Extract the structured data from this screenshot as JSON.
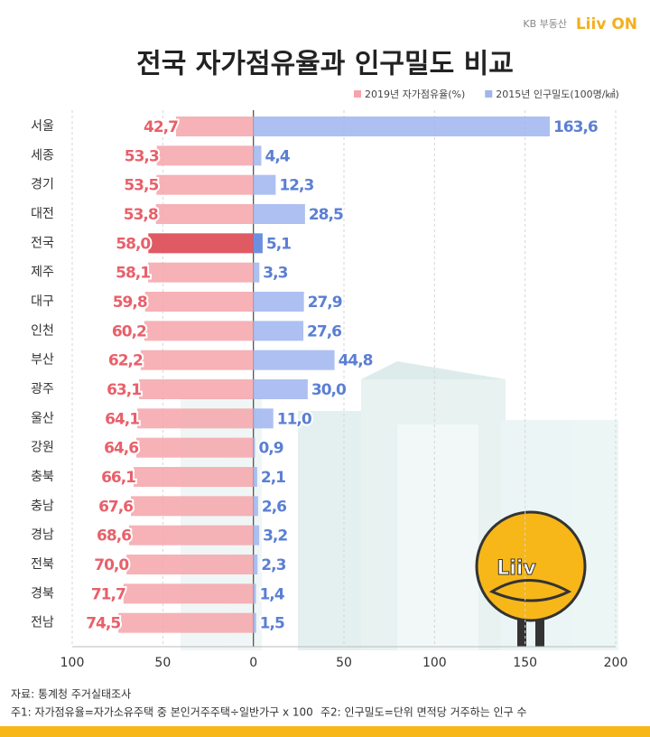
{
  "brand": {
    "name": "KB 부동산",
    "logo": "Liiv ON"
  },
  "chart_data": {
    "type": "diverging-bar",
    "title": "전국 자가점유율과 인구밀도 비교",
    "categories": [
      "서울",
      "세종",
      "경기",
      "대전",
      "전국",
      "제주",
      "대구",
      "인천",
      "부산",
      "광주",
      "울산",
      "강원",
      "충북",
      "충남",
      "경남",
      "전북",
      "경북",
      "전남"
    ],
    "highlight_category_index": 4,
    "series": [
      {
        "name": "2019년 자가점유율(%)",
        "direction": "left",
        "color": "#f5a4aa",
        "highlight_color": "#e05a63",
        "label_color": "#e8606a",
        "values": [
          42.7,
          53.3,
          53.5,
          53.8,
          58.0,
          58.1,
          59.8,
          60.2,
          62.2,
          63.1,
          64.1,
          64.6,
          66.1,
          67.6,
          68.6,
          70.0,
          71.7,
          74.5
        ],
        "value_labels": [
          "42,7",
          "53,3",
          "53,5",
          "53,8",
          "58,0",
          "58,1",
          "59,8",
          "60,2",
          "62,2",
          "63,1",
          "64,1",
          "64,6",
          "66,1",
          "67,6",
          "68,6",
          "70,0",
          "71,7",
          "74,5"
        ]
      },
      {
        "name": "2015년 인구밀도(100명/㎢)",
        "direction": "right",
        "color": "#9fb5ef",
        "highlight_color": "#6d8fdf",
        "label_color": "#5b7fd3",
        "values": [
          163.6,
          4.4,
          12.3,
          28.5,
          5.1,
          3.3,
          27.9,
          27.6,
          44.8,
          30.0,
          11.0,
          0.9,
          2.1,
          2.6,
          3.2,
          2.3,
          1.4,
          1.5
        ],
        "value_labels": [
          "163,6",
          "4,4",
          "12,3",
          "28,5",
          "5,1",
          "3,3",
          "27,9",
          "27,6",
          "44,8",
          "30,0",
          "11,0",
          "0,9",
          "2,1",
          "2,6",
          "3,2",
          "2,3",
          "1,4",
          "1,5"
        ]
      }
    ],
    "xlim": [
      -100,
      200
    ],
    "xticks": [
      {
        "value": -100,
        "label": "100"
      },
      {
        "value": -50,
        "label": "50"
      },
      0,
      50,
      100,
      150,
      200
    ],
    "grid": true,
    "legend": "top-right"
  },
  "notes": {
    "source": "자료: 통계청 주거실태조사",
    "note1": "주1: 자가점유율=자가소유주택 중 본인거주주택÷일반가구 x 100",
    "note2": "주2: 인구밀도=단위 면적당 거주하는 인구 수"
  }
}
